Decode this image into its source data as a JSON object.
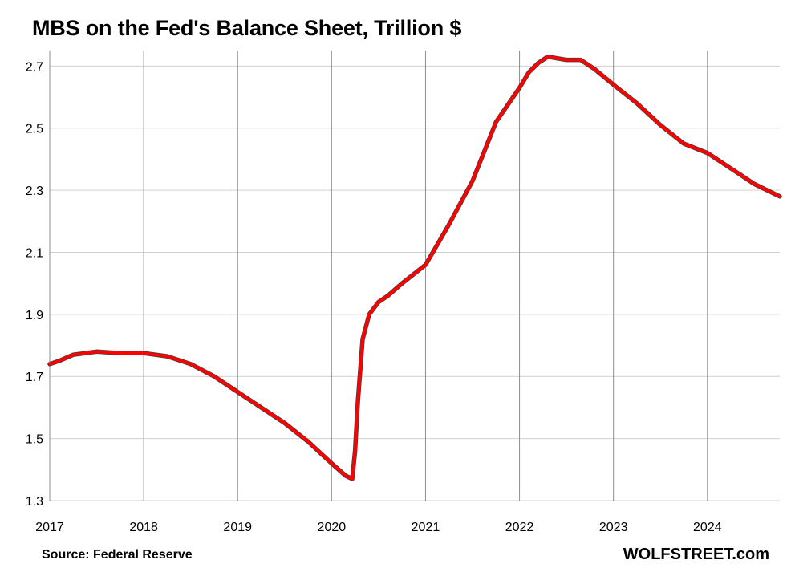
{
  "chart_data": {
    "type": "line",
    "title": "MBS on the Fed's Balance Sheet, Trillion $",
    "xlabel": "",
    "ylabel": "",
    "source": "Source: Federal Reserve",
    "brand": "WOLFSTREET.com",
    "x_ticks": [
      "2017",
      "2018",
      "2019",
      "2020",
      "2021",
      "2022",
      "2023",
      "2024"
    ],
    "y_ticks": [
      "1.3",
      "1.5",
      "1.7",
      "1.9",
      "2.1",
      "2.3",
      "2.5",
      "2.7"
    ],
    "xlim": [
      2017.0,
      2024.77
    ],
    "ylim": [
      1.3,
      2.75
    ],
    "grid": true,
    "series": [
      {
        "color": "#ff0000",
        "x": [
          2017.0,
          2017.1,
          2017.25,
          2017.5,
          2017.75,
          2018.0,
          2018.25,
          2018.5,
          2018.75,
          2019.0,
          2019.25,
          2019.5,
          2019.75,
          2020.0,
          2020.15,
          2020.22,
          2020.25,
          2020.28,
          2020.33,
          2020.4,
          2020.5,
          2020.6,
          2020.75,
          2021.0,
          2021.25,
          2021.5,
          2021.75,
          2022.0,
          2022.1,
          2022.2,
          2022.3,
          2022.5,
          2022.65,
          2022.8,
          2023.0,
          2023.25,
          2023.5,
          2023.75,
          2024.0,
          2024.25,
          2024.5,
          2024.77
        ],
        "y": [
          1.74,
          1.75,
          1.77,
          1.78,
          1.775,
          1.775,
          1.765,
          1.74,
          1.7,
          1.65,
          1.6,
          1.55,
          1.49,
          1.42,
          1.38,
          1.37,
          1.46,
          1.62,
          1.82,
          1.9,
          1.94,
          1.96,
          2.0,
          2.06,
          2.19,
          2.33,
          2.52,
          2.63,
          2.68,
          2.71,
          2.73,
          2.72,
          2.72,
          2.69,
          2.64,
          2.58,
          2.51,
          2.45,
          2.42,
          2.37,
          2.32,
          2.28
        ]
      }
    ]
  }
}
